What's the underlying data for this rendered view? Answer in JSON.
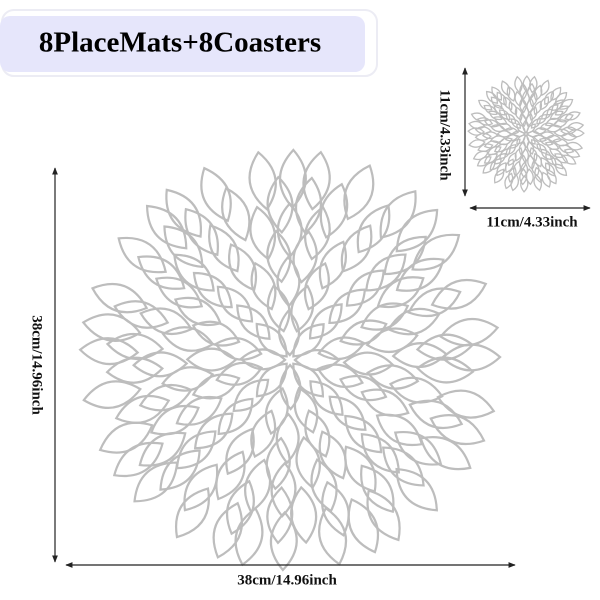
{
  "title": "8PlaceMats+8Coasters",
  "placemat": {
    "height_label": "38cm/14.96inch",
    "width_label": "38cm/14.96inch"
  },
  "coaster": {
    "height_label": "11cm/4.33inch",
    "width_label": "11cm/4.33inch"
  }
}
